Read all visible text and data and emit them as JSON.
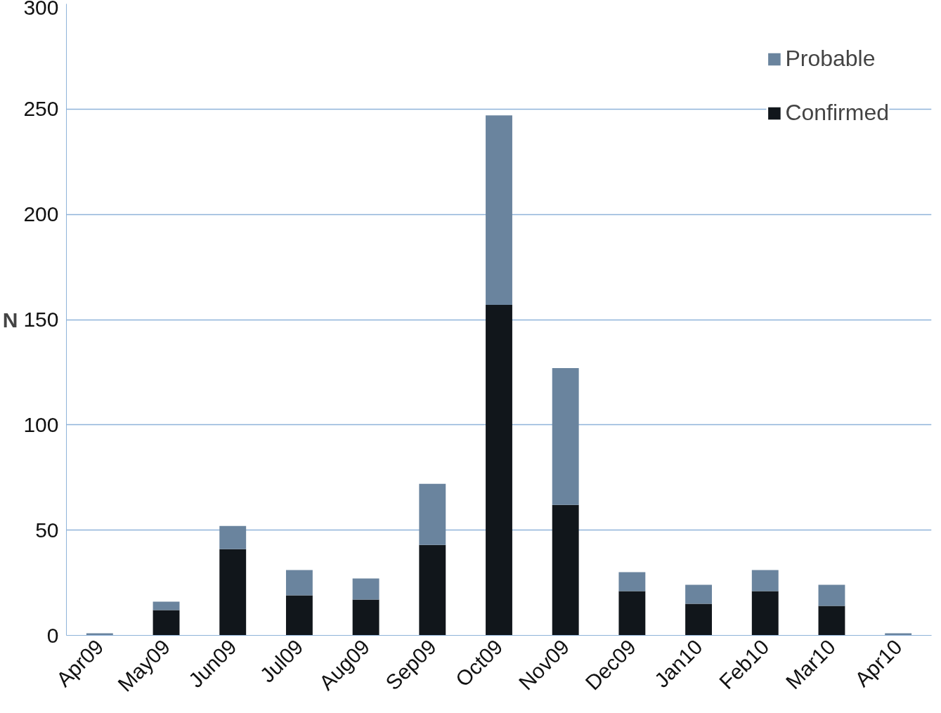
{
  "chart_data": {
    "type": "bar",
    "stacked": true,
    "ylabel": "N",
    "categories": [
      "Apr09",
      "May09",
      "Jun09",
      "Jul09",
      "Aug09",
      "Sep09",
      "Oct09",
      "Nov09",
      "Dec09",
      "Jan10",
      "Feb10",
      "Mar10",
      "Apr10"
    ],
    "series": [
      {
        "name": "Confirmed",
        "color": "#11161b",
        "values": [
          0,
          12,
          41,
          19,
          17,
          43,
          157,
          62,
          21,
          15,
          21,
          14,
          0
        ]
      },
      {
        "name": "Probable",
        "color": "#6a849e",
        "values": [
          1,
          4,
          11,
          12,
          10,
          29,
          90,
          65,
          9,
          9,
          10,
          10,
          1
        ]
      }
    ],
    "ylim": [
      0,
      300
    ],
    "yticks": [
      0,
      50,
      100,
      150,
      200,
      250,
      300
    ],
    "grid": "y",
    "legend": "top right"
  }
}
